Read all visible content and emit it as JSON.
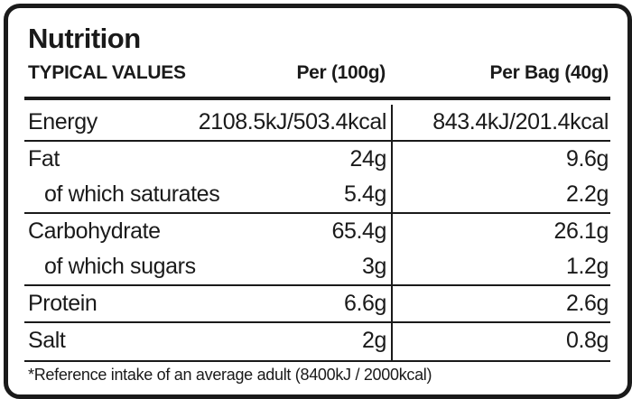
{
  "title": "Nutrition",
  "headers": {
    "typical": "TYPICAL VALUES",
    "per100": "Per (100g)",
    "perbag": "Per Bag (40g)"
  },
  "rows": [
    {
      "name": "Energy",
      "per100": "2108.5kJ/503.4kcal",
      "perbag": "843.4kJ/201.4kcal"
    },
    {
      "name": "Fat",
      "per100": "24g",
      "perbag": "9.6g"
    },
    {
      "name": "of which saturates",
      "per100": "5.4g",
      "perbag": "2.2g"
    },
    {
      "name": "Carbohydrate",
      "per100": "65.4g",
      "perbag": "26.1g"
    },
    {
      "name": "of which sugars",
      "per100": "3g",
      "perbag": "1.2g"
    },
    {
      "name": "Protein",
      "per100": "6.6g",
      "perbag": "2.6g"
    },
    {
      "name": "Salt",
      "per100": "2g",
      "perbag": "0.8g"
    }
  ],
  "footnote": "*Reference intake of an average adult (8400kJ / 2000kcal)"
}
